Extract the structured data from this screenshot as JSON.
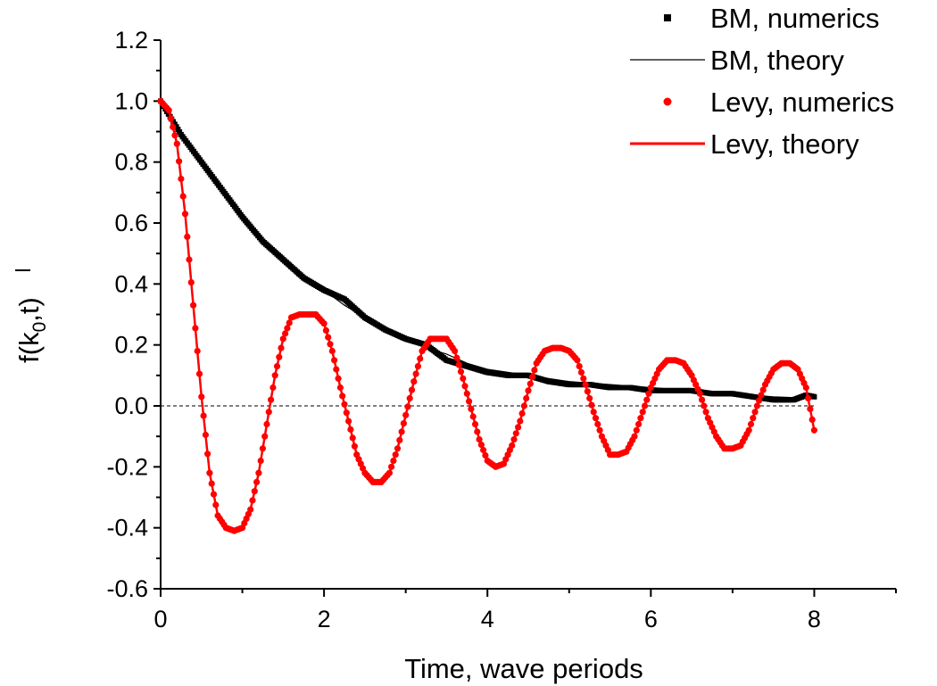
{
  "chart_data": {
    "type": "line",
    "title": "",
    "xlabel": "Time, wave periods",
    "ylabel": {
      "main": "f(k",
      "subscript": "0",
      "tail": ",t)",
      "overline": true
    },
    "xlim": [
      0,
      9
    ],
    "ylim": [
      -0.6,
      1.2
    ],
    "xticks": [
      "0",
      "2",
      "4",
      "6",
      "8"
    ],
    "yticks": [
      "-0.6",
      "-0.4",
      "-0.2",
      "0.0",
      "0.2",
      "0.4",
      "0.6",
      "0.8",
      "1.0",
      "1.2"
    ],
    "reference_line": {
      "y": 0.0,
      "style": "dashed"
    },
    "grid": false,
    "legend_position": "top-right",
    "series": [
      {
        "name": "BM, numerics",
        "kind": "markers",
        "marker": "square",
        "color": "#000000",
        "x": [
          0.0,
          0.25,
          0.5,
          0.75,
          1.0,
          1.25,
          1.5,
          1.75,
          2.0,
          2.25,
          2.5,
          2.75,
          3.0,
          3.25,
          3.5,
          3.75,
          4.0,
          4.25,
          4.5,
          4.75,
          5.0,
          5.25,
          5.5,
          5.75,
          6.0,
          6.25,
          6.5,
          6.75,
          7.0,
          7.25,
          7.5,
          7.75,
          7.9,
          8.0
        ],
        "y": [
          1.0,
          0.89,
          0.8,
          0.71,
          0.62,
          0.54,
          0.48,
          0.42,
          0.38,
          0.35,
          0.29,
          0.25,
          0.22,
          0.2,
          0.15,
          0.13,
          0.11,
          0.1,
          0.1,
          0.08,
          0.07,
          0.07,
          0.06,
          0.06,
          0.05,
          0.05,
          0.05,
          0.04,
          0.04,
          0.03,
          0.02,
          0.02,
          0.035,
          0.03
        ]
      },
      {
        "name": "BM, theory",
        "kind": "line",
        "color": "#000000",
        "x": [
          0.0,
          0.25,
          0.5,
          0.75,
          1.0,
          1.25,
          1.5,
          1.75,
          2.0,
          2.25,
          2.5,
          2.75,
          3.0,
          3.25,
          3.5,
          3.75,
          4.0,
          4.25,
          4.5,
          4.75,
          5.0,
          5.5,
          6.0,
          6.5,
          7.0,
          7.5,
          8.0
        ],
        "y": [
          1.0,
          0.89,
          0.8,
          0.71,
          0.62,
          0.54,
          0.47,
          0.42,
          0.38,
          0.33,
          0.29,
          0.26,
          0.22,
          0.19,
          0.17,
          0.14,
          0.12,
          0.11,
          0.1,
          0.09,
          0.08,
          0.07,
          0.06,
          0.05,
          0.04,
          0.03,
          0.025
        ]
      },
      {
        "name": "Levy, numerics",
        "kind": "markers",
        "marker": "circle",
        "color": "#ff0000",
        "x": [
          0.0,
          0.1,
          0.2,
          0.3,
          0.4,
          0.5,
          0.6,
          0.7,
          0.8,
          0.9,
          1.0,
          1.1,
          1.2,
          1.3,
          1.4,
          1.5,
          1.6,
          1.7,
          1.8,
          1.9,
          2.0,
          2.1,
          2.2,
          2.3,
          2.4,
          2.5,
          2.6,
          2.7,
          2.8,
          2.9,
          3.0,
          3.1,
          3.2,
          3.3,
          3.4,
          3.5,
          3.6,
          3.7,
          3.8,
          3.9,
          4.0,
          4.1,
          4.2,
          4.3,
          4.4,
          4.5,
          4.6,
          4.7,
          4.8,
          4.9,
          5.0,
          5.1,
          5.2,
          5.3,
          5.4,
          5.5,
          5.6,
          5.7,
          5.8,
          5.9,
          6.0,
          6.1,
          6.2,
          6.3,
          6.4,
          6.5,
          6.6,
          6.7,
          6.8,
          6.9,
          7.0,
          7.1,
          7.2,
          7.3,
          7.4,
          7.5,
          7.6,
          7.7,
          7.8,
          7.9,
          8.0
        ],
        "y": [
          1.0,
          0.97,
          0.86,
          0.63,
          0.33,
          0.03,
          -0.22,
          -0.36,
          -0.4,
          -0.41,
          -0.4,
          -0.34,
          -0.22,
          -0.06,
          0.1,
          0.22,
          0.29,
          0.3,
          0.3,
          0.3,
          0.27,
          0.18,
          0.06,
          -0.05,
          -0.16,
          -0.22,
          -0.25,
          -0.25,
          -0.22,
          -0.14,
          -0.03,
          0.08,
          0.18,
          0.22,
          0.22,
          0.22,
          0.18,
          0.09,
          -0.01,
          -0.11,
          -0.18,
          -0.2,
          -0.19,
          -0.13,
          -0.05,
          0.05,
          0.14,
          0.18,
          0.19,
          0.19,
          0.18,
          0.15,
          0.07,
          -0.02,
          -0.1,
          -0.16,
          -0.16,
          -0.15,
          -0.1,
          -0.02,
          0.06,
          0.12,
          0.15,
          0.15,
          0.14,
          0.1,
          0.04,
          -0.04,
          -0.1,
          -0.14,
          -0.14,
          -0.13,
          -0.08,
          0.0,
          0.07,
          0.12,
          0.14,
          0.14,
          0.12,
          0.06,
          -0.08
        ]
      },
      {
        "name": "Levy, theory",
        "kind": "line",
        "color": "#ff0000",
        "x": [
          0.0,
          0.1,
          0.2,
          0.3,
          0.4,
          0.5,
          0.6,
          0.7,
          0.8,
          0.9,
          1.0,
          1.1,
          1.2,
          1.3,
          1.4,
          1.5,
          1.6,
          1.7,
          1.8,
          1.9,
          2.0,
          2.1,
          2.2,
          2.3,
          2.4,
          2.5,
          2.6,
          2.7,
          2.8,
          2.9,
          3.0,
          3.1,
          3.2,
          3.3,
          3.4,
          3.5,
          3.6,
          3.7,
          3.8,
          3.9,
          4.0,
          4.1,
          4.2,
          4.3,
          4.4,
          4.5,
          4.6,
          4.7,
          4.8,
          4.9,
          5.0,
          5.1,
          5.2,
          5.3,
          5.4,
          5.5,
          5.6,
          5.7,
          5.8,
          5.9,
          6.0,
          6.1,
          6.2,
          6.3,
          6.4,
          6.5,
          6.6,
          6.7,
          6.8,
          6.9,
          7.0,
          7.1,
          7.2,
          7.3,
          7.4,
          7.5,
          7.6,
          7.7,
          7.8,
          7.9,
          8.0
        ],
        "y": [
          1.0,
          0.97,
          0.86,
          0.63,
          0.33,
          0.03,
          -0.22,
          -0.36,
          -0.4,
          -0.41,
          -0.4,
          -0.34,
          -0.22,
          -0.06,
          0.1,
          0.22,
          0.29,
          0.3,
          0.3,
          0.3,
          0.27,
          0.18,
          0.06,
          -0.05,
          -0.16,
          -0.22,
          -0.25,
          -0.25,
          -0.22,
          -0.14,
          -0.03,
          0.08,
          0.18,
          0.22,
          0.22,
          0.22,
          0.18,
          0.09,
          -0.01,
          -0.11,
          -0.18,
          -0.2,
          -0.19,
          -0.13,
          -0.05,
          0.05,
          0.14,
          0.18,
          0.19,
          0.19,
          0.18,
          0.15,
          0.07,
          -0.02,
          -0.1,
          -0.16,
          -0.16,
          -0.15,
          -0.1,
          -0.02,
          0.06,
          0.12,
          0.15,
          0.15,
          0.14,
          0.1,
          0.04,
          -0.04,
          -0.1,
          -0.14,
          -0.14,
          -0.13,
          -0.08,
          0.0,
          0.07,
          0.12,
          0.14,
          0.14,
          0.12,
          0.06,
          -0.08
        ]
      }
    ]
  }
}
